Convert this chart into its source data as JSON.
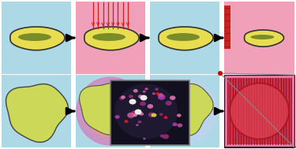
{
  "fig_w": 3.75,
  "fig_h": 1.89,
  "dpi": 100,
  "bg": "#add8e6",
  "white": "#ffffff",
  "yellow": "#e8dd50",
  "olive": "#7a8c28",
  "pink_bg": "#f0a0b8",
  "pink_light": "#f0b8c8",
  "mauve": "#d088c0",
  "salmon": "#f09880",
  "red_line": "#cc2020",
  "black": "#111111",
  "gray_zoom": "#888888",
  "red_rect": "#cc2020",
  "red_scan_bg": "#cc3040",
  "pink_scan_bg": "#e878a0",
  "scan_line": "#881030",
  "red_circle": "#cc3030",
  "dark_img": "#1c1a2a",
  "panel_border": "#aaaaaa",
  "green_olive": "#8a9a30",
  "yellow_green": "#ccd858",
  "pale_blue": "#c0d4ee"
}
